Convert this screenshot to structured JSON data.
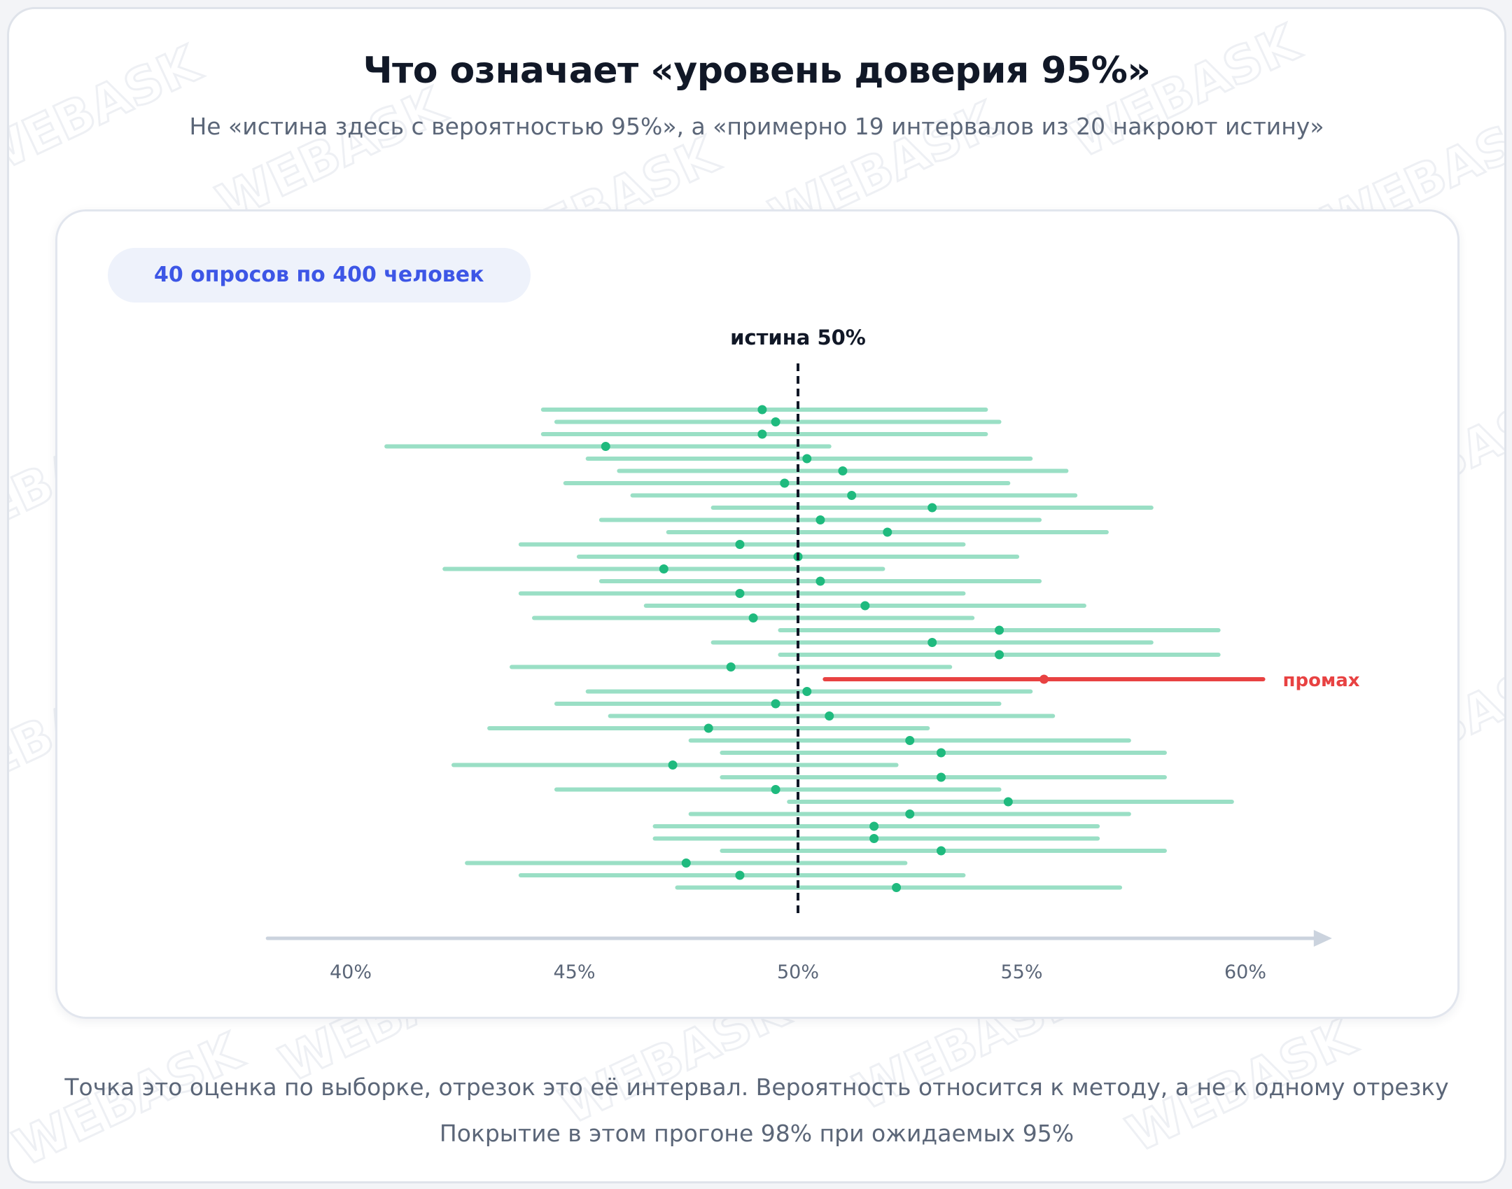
{
  "title": "Что означает «уровень доверия 95%»",
  "subtitle": "Не «истина здесь с вероятностью 95%», а «примерно 19 интервалов из 20 накроют истину»",
  "badge": "40 опросов по 400 человек",
  "footnote_1": "Точка это оценка по выборке, отрезок это её интервал. Вероятность относится к методу, а не к одному отрезку",
  "footnote_2": "Покрытие в этом прогоне 98% при ожидаемых 95%",
  "watermark": "WEBASK",
  "colors": {
    "interval": "#9adfc5",
    "point": "#1fba7e",
    "miss": "#e84242",
    "truth_line": "#111827",
    "axis": "#cbd3de",
    "tick_text": "#5b6678"
  },
  "chart_data": {
    "type": "interval",
    "orientation": "horizontal",
    "truth": {
      "value": 50,
      "label": "истина 50%"
    },
    "miss_label": "промах",
    "xlim": [
      38.0,
      62.0
    ],
    "xticks": [
      40,
      45,
      50,
      55,
      60
    ],
    "xtick_labels": [
      "40%",
      "45%",
      "50%",
      "55%",
      "60%"
    ],
    "intervals": [
      {
        "estimate": 49.2,
        "low": 44.3,
        "high": 54.2,
        "miss": false
      },
      {
        "estimate": 49.5,
        "low": 44.6,
        "high": 54.5,
        "miss": false
      },
      {
        "estimate": 49.2,
        "low": 44.3,
        "high": 54.2,
        "miss": false
      },
      {
        "estimate": 45.7,
        "low": 40.8,
        "high": 50.7,
        "miss": false
      },
      {
        "estimate": 50.2,
        "low": 45.3,
        "high": 55.2,
        "miss": false
      },
      {
        "estimate": 51.0,
        "low": 46.0,
        "high": 56.0,
        "miss": false
      },
      {
        "estimate": 49.7,
        "low": 44.8,
        "high": 54.7,
        "miss": false
      },
      {
        "estimate": 51.2,
        "low": 46.3,
        "high": 56.2,
        "miss": false
      },
      {
        "estimate": 53.0,
        "low": 48.1,
        "high": 57.9,
        "miss": false
      },
      {
        "estimate": 50.5,
        "low": 45.6,
        "high": 55.4,
        "miss": false
      },
      {
        "estimate": 52.0,
        "low": 47.1,
        "high": 56.9,
        "miss": false
      },
      {
        "estimate": 48.7,
        "low": 43.8,
        "high": 53.7,
        "miss": false
      },
      {
        "estimate": 50.0,
        "low": 45.1,
        "high": 54.9,
        "miss": false
      },
      {
        "estimate": 47.0,
        "low": 42.1,
        "high": 51.9,
        "miss": false
      },
      {
        "estimate": 50.5,
        "low": 45.6,
        "high": 55.4,
        "miss": false
      },
      {
        "estimate": 48.7,
        "low": 43.8,
        "high": 53.7,
        "miss": false
      },
      {
        "estimate": 51.5,
        "low": 46.6,
        "high": 56.4,
        "miss": false
      },
      {
        "estimate": 49.0,
        "low": 44.1,
        "high": 53.9,
        "miss": false
      },
      {
        "estimate": 54.5,
        "low": 49.6,
        "high": 59.4,
        "miss": false
      },
      {
        "estimate": 53.0,
        "low": 48.1,
        "high": 57.9,
        "miss": false
      },
      {
        "estimate": 54.5,
        "low": 49.6,
        "high": 59.4,
        "miss": false
      },
      {
        "estimate": 48.5,
        "low": 43.6,
        "high": 53.4,
        "miss": false
      },
      {
        "estimate": 55.5,
        "low": 50.6,
        "high": 60.4,
        "miss": true
      },
      {
        "estimate": 50.2,
        "low": 45.3,
        "high": 55.2,
        "miss": false
      },
      {
        "estimate": 49.5,
        "low": 44.6,
        "high": 54.5,
        "miss": false
      },
      {
        "estimate": 50.7,
        "low": 45.8,
        "high": 55.7,
        "miss": false
      },
      {
        "estimate": 48.0,
        "low": 43.1,
        "high": 52.9,
        "miss": false
      },
      {
        "estimate": 52.5,
        "low": 47.6,
        "high": 57.4,
        "miss": false
      },
      {
        "estimate": 53.2,
        "low": 48.3,
        "high": 58.2,
        "miss": false
      },
      {
        "estimate": 47.2,
        "low": 42.3,
        "high": 52.2,
        "miss": false
      },
      {
        "estimate": 53.2,
        "low": 48.3,
        "high": 58.2,
        "miss": false
      },
      {
        "estimate": 49.5,
        "low": 44.6,
        "high": 54.5,
        "miss": false
      },
      {
        "estimate": 54.7,
        "low": 49.8,
        "high": 59.7,
        "miss": false
      },
      {
        "estimate": 52.5,
        "low": 47.6,
        "high": 57.4,
        "miss": false
      },
      {
        "estimate": 51.7,
        "low": 46.8,
        "high": 56.7,
        "miss": false
      },
      {
        "estimate": 51.7,
        "low": 46.8,
        "high": 56.7,
        "miss": false
      },
      {
        "estimate": 53.2,
        "low": 48.3,
        "high": 58.2,
        "miss": false
      },
      {
        "estimate": 47.5,
        "low": 42.6,
        "high": 52.4,
        "miss": false
      },
      {
        "estimate": 48.7,
        "low": 43.8,
        "high": 53.7,
        "miss": false
      },
      {
        "estimate": 52.2,
        "low": 47.3,
        "high": 57.2,
        "miss": false
      }
    ]
  }
}
